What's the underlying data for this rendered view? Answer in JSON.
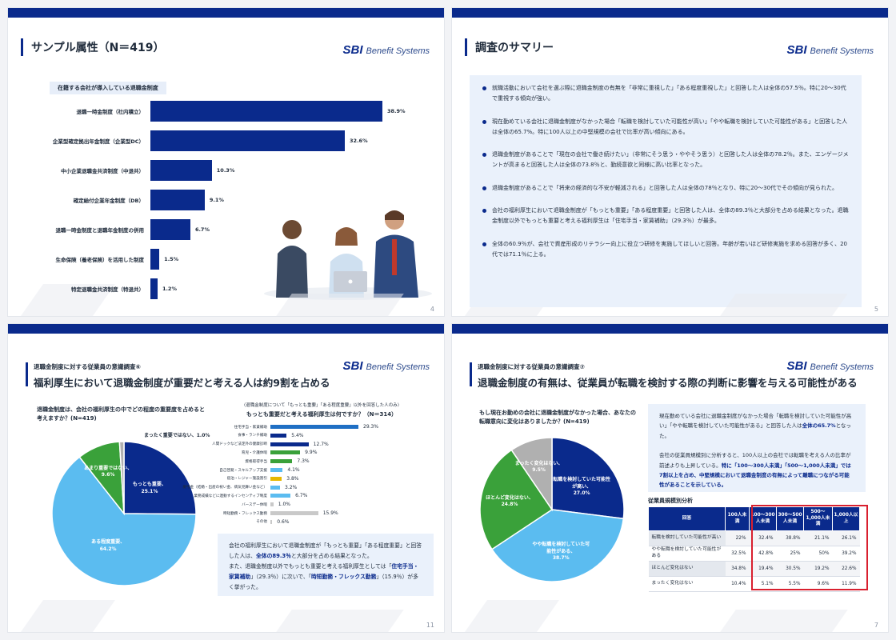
{
  "brand": {
    "sbi": "SBI",
    "name": "Benefit Systems"
  },
  "slide1": {
    "title": "サンプル属性（N＝419）",
    "chip": "在籍する会社が導入している退職金制度",
    "page": "4",
    "bars": [
      {
        "label": "退職一時金制度（社内積立）",
        "value": 38.9,
        "display": "38.9%"
      },
      {
        "label": "企業型確定拠出年金制度（企業型DC）",
        "value": 32.6,
        "display": "32.6%"
      },
      {
        "label": "中小企業退職金共済制度（中退共）",
        "value": 10.3,
        "display": "10.3%"
      },
      {
        "label": "確定給付企業年金制度（DB）",
        "value": 9.1,
        "display": "9.1%"
      },
      {
        "label": "退職一時金制度と退職年金制度の併用",
        "value": 6.7,
        "display": "6.7%"
      },
      {
        "label": "生命保険（養老保険）を活用した制度",
        "value": 1.5,
        "display": "1.5%"
      },
      {
        "label": "特定退職金共済制度（特退共）",
        "value": 1.2,
        "display": "1.2%"
      }
    ]
  },
  "slide2": {
    "title": "調査のサマリー",
    "page": "5",
    "items": [
      "就職活動において会社を選ぶ際に退職金制度の有無を「非常に重視した」「ある程度重視した」と回答した人は全体の57.5％。特に20～30代で重視する傾向が強い。",
      "現在勤めている会社に退職金制度がなかった場合「転職を検討していた可能性が高い」「やや転職を検討していた可能性がある」と回答した人は全体の65.7%。特に100人以上の中堅規模の会社で比率が高い傾向にある。",
      "退職金制度があることで「現在の会社で働き続けたい」（非常にそう思う・ややそう思う）と回答した人は全体の78.2％。また、エンゲージメントが高まると回答した人は全体の73.8％と、勤続意欲と同様に高い比率となった。",
      "退職金制度があることで「将来の経済的な不安が軽減される」と回答した人は全体の78％となり、特に20～30代でその傾向が見られた。",
      "会社の福利厚生において退職金制度が「もっとも重要」「ある程度重要」と回答した人は、全体の89.3％と大部分を占める結果となった。退職金制度以外でもっとも重要と考える福利厚生は「住宅手当・家賃補助」（29.3％）が最多。",
      "全体の60.9％が、会社で資産形成のリテラシー向上に役立つ研修を実施してほしいと回答。年齢が若いほど研修実施を求める回答が多く、20代では71.1％に上る。"
    ]
  },
  "slide3": {
    "subhead": "退職金制度に対する従業員の意識調査⑥",
    "title": "福利厚生において退職金制度が重要だと考える人は約9割を占める",
    "question": "退職金制度は、会社の福利厚生の中でどの程度の重要度を占めると考えますか？(N=419)",
    "page": "11",
    "pie": [
      {
        "label": "もっとも重要",
        "value": 25.1,
        "display": "25.1%",
        "color": "#0a2a8c"
      },
      {
        "label": "ある程度重要",
        "value": 64.2,
        "display": "64.2%",
        "color": "#5bbcf0"
      },
      {
        "label": "あまり重要ではない",
        "value": 9.6,
        "display": "9.6%",
        "color": "#3aa13a"
      },
      {
        "label": "まったく重要ではない",
        "value": 1.0,
        "display": "1.0%",
        "color": "#b0b0b0"
      }
    ],
    "chart2_note": "〈退職金制度について「もっとも重要」「ある程度重要」以外を回答した人のみ〉",
    "chart2_title": "もっとも重要だと考える福利厚生は何ですか？（N＝314）",
    "bars": [
      {
        "label": "住宅手当・家賃補助",
        "value": 29.3,
        "display": "29.3%",
        "color": "#1f6fc4"
      },
      {
        "label": "食事・ランチ補助",
        "value": 5.4,
        "display": "5.4%",
        "color": "#0a2a8c"
      },
      {
        "label": "人間ドックなど法定外の健康診断",
        "value": 12.7,
        "display": "12.7%",
        "color": "#0a2a8c"
      },
      {
        "label": "育児・介護休暇",
        "value": 9.9,
        "display": "9.9%",
        "color": "#3aa13a"
      },
      {
        "label": "資格取得手当",
        "value": 7.3,
        "display": "7.3%",
        "color": "#3aa13a"
      },
      {
        "label": "自己啓発・スキルアップ支援",
        "value": 4.1,
        "display": "4.1%",
        "color": "#5bbcf0"
      },
      {
        "label": "宿泊・レジャー施設割引",
        "value": 3.8,
        "display": "3.8%",
        "color": "#e6b800"
      },
      {
        "label": "慶弔金（結婚・出産の祝い金、病気見舞い金など）",
        "value": 3.2,
        "display": "3.2%",
        "color": "#5bbcf0"
      },
      {
        "label": "業務成績などに連動するインセンティブ制度",
        "value": 6.7,
        "display": "6.7%",
        "color": "#5bbcf0"
      },
      {
        "label": "バースデー休暇",
        "value": 1.0,
        "display": "1.0%",
        "color": "#c9c9c9"
      },
      {
        "label": "時短勤務・フレックス勤務",
        "value": 15.9,
        "display": "15.9%",
        "color": "#c9c9c9"
      },
      {
        "label": "その他",
        "value": 0.6,
        "display": "0.6%",
        "color": "#c9c9c9"
      }
    ],
    "note": {
      "l1": "会社の福利厚生において退職金制度が「もっとも重要」「ある程度重要」と回答した人は、",
      "b1": "全体の89.3％",
      "l2": "と大部分を占める結果となった。",
      "l3": "また、退職金制度以外でもっとも重要と考える福利厚生としては「",
      "b2": "住宅手当・家賃補助",
      "l4": "」（29.3％）に次いで、「",
      "b3": "時短勤務・フレックス勤務",
      "l5": "」（15.9％）が多く挙がった。"
    }
  },
  "slide4": {
    "subhead": "退職金制度に対する従業員の意識調査⑦",
    "title": "退職金制度の有無は、従業員が転職を検討する際の判断に影響を与える可能性がある",
    "question": "もし現在お勤めの会社に退職金制度がなかった場合、あなたの転職意向に変化はありましたか？(N=419)",
    "page": "7",
    "pie": [
      {
        "label": "転職を検討していた可能性が高い",
        "value": 27.0,
        "display": "27.0%",
        "color": "#0a2a8c"
      },
      {
        "label": "やや転職を検討していた可能性がある",
        "value": 38.7,
        "display": "38.7%",
        "color": "#5bbcf0"
      },
      {
        "label": "ほとんど変化はない",
        "value": 24.8,
        "display": "24.8%",
        "color": "#3aa13a"
      },
      {
        "label": "まったく変化はない",
        "value": 9.5,
        "display": "9.5%",
        "color": "#b0b0b0"
      }
    ],
    "note": {
      "p1a": "現在勤めている会社に退職金制度がなかった場合「転職を検討していた可能性が高い」「やや転職を検討していた可能性がある」と回答した人は",
      "p1b": "全体の65.7%",
      "p1c": "となった。",
      "p2a": "会社の従業員規模別に分析すると、100人以上の会社では転職を考える人の比率が前述よりも上昇している。",
      "p2b": "特に「100～300人未満」「500～1,000人未満」では7割以上を占め、中堅規模において退職金制度の有無によって離職につながる可能性があることを示している。"
    },
    "table": {
      "title": "従業員規模別分析",
      "headers": [
        "回答",
        "100人未満",
        "100～300人未満",
        "300～500人未満",
        "500～1,000人未満",
        "1,000人以上"
      ],
      "rows": [
        [
          "転職を検討していた可能性が高い",
          "22%",
          "32.4%",
          "38.8%",
          "21.1%",
          "26.1%"
        ],
        [
          "やや転職を検討していた可能性がある",
          "32.5%",
          "42.8%",
          "25%",
          "50%",
          "39.2%"
        ],
        [
          "ほとんど変化はない",
          "34.8%",
          "19.4%",
          "30.5%",
          "19.2%",
          "22.6%"
        ],
        [
          "まったく変化はない",
          "10.4%",
          "5.1%",
          "5.5%",
          "9.6%",
          "11.9%"
        ]
      ]
    }
  }
}
